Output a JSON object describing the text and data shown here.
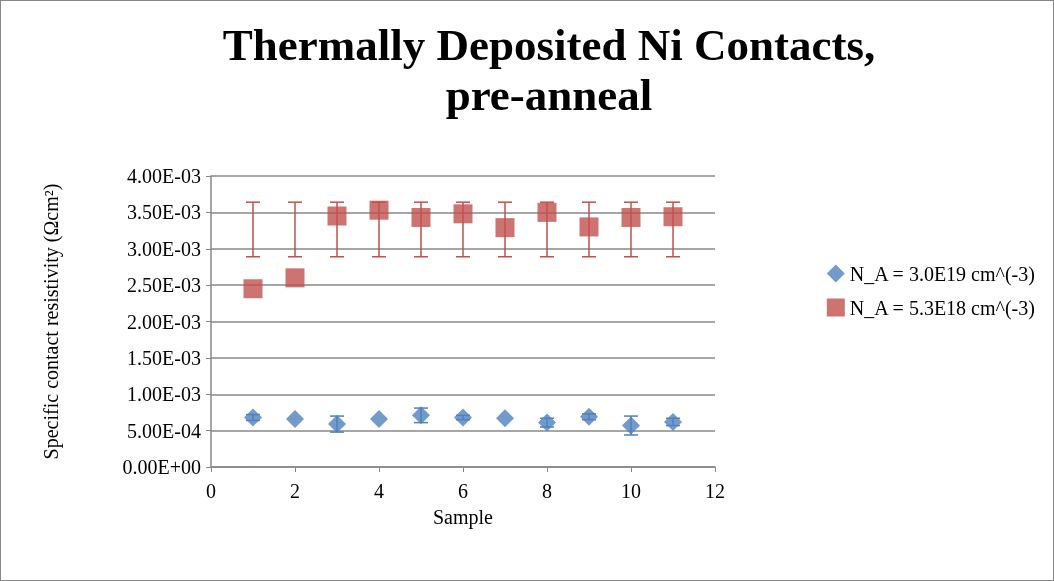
{
  "chart_data": {
    "type": "scatter",
    "title": "Thermally Deposited Ni Contacts,\npre-anneal",
    "xlabel": "Sample",
    "ylabel": "Specific contact resistivity (Ωcm²)",
    "xlim": [
      0,
      12
    ],
    "xticks": [
      0,
      2,
      4,
      6,
      8,
      10,
      12
    ],
    "ylim": [
      0,
      0.004
    ],
    "yticks": [
      {
        "value": 0,
        "label": "0.00E+00"
      },
      {
        "value": 0.0005,
        "label": "5.00E-04"
      },
      {
        "value": 0.001,
        "label": "1.00E-03"
      },
      {
        "value": 0.0015,
        "label": "1.50E-03"
      },
      {
        "value": 0.002,
        "label": "2.00E-03"
      },
      {
        "value": 0.0025,
        "label": "2.50E-03"
      },
      {
        "value": 0.003,
        "label": "3.00E-03"
      },
      {
        "value": 0.0035,
        "label": "3.50E-03"
      },
      {
        "value": 0.004,
        "label": "4.00E-03"
      }
    ],
    "grid": "y",
    "legend": "right",
    "x": [
      1,
      2,
      3,
      4,
      5,
      6,
      7,
      8,
      9,
      10,
      11
    ],
    "series": [
      {
        "name": "N_A = 3.0E19 cm^(-3)",
        "color": "#4f81bd",
        "marker": "diamond",
        "values": [
          0.00068,
          0.00066,
          0.00059,
          0.00066,
          0.00071,
          0.00068,
          0.00067,
          0.00061,
          0.00069,
          0.00057,
          0.00062
        ],
        "errors": [
          4e-05,
          null,
          0.00011,
          null,
          0.0001,
          3e-05,
          null,
          6e-05,
          4e-05,
          0.00013,
          5e-05
        ]
      },
      {
        "name": "N_A = 5.3E18 cm^(-3)",
        "color": "#c0504d",
        "marker": "square",
        "values": [
          0.00245,
          0.0026,
          0.00345,
          0.00353,
          0.00343,
          0.00348,
          0.00329,
          0.0035,
          0.0033,
          0.00343,
          0.00344
        ],
        "errors": [
          [
            0.00289,
            0.00364
          ],
          [
            0.00289,
            0.00364
          ],
          [
            0.00289,
            0.00364
          ],
          [
            0.00289,
            0.00364
          ],
          [
            0.00289,
            0.00364
          ],
          [
            0.00289,
            0.00364
          ],
          [
            0.00289,
            0.00364
          ],
          [
            0.00289,
            0.00364
          ],
          [
            0.00289,
            0.00364
          ],
          [
            0.00289,
            0.00364
          ],
          [
            0.00289,
            0.00364
          ]
        ]
      }
    ]
  }
}
